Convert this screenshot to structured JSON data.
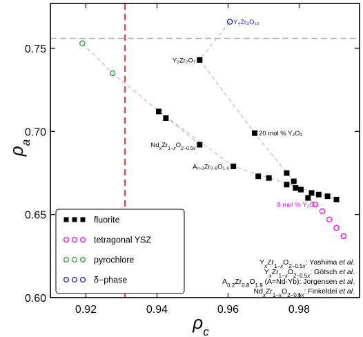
{
  "chart_data": {
    "type": "scatter",
    "xlabel": "ρ",
    "xlabel_sub": "c",
    "ylabel": "ρ",
    "ylabel_sub": "a",
    "xlim": [
      0.91,
      0.997
    ],
    "ylim": [
      0.6,
      0.777
    ],
    "xticks": [
      0.92,
      0.94,
      0.96,
      0.98
    ],
    "xtick_labels": [
      "0.92",
      "0.94",
      "0.96",
      "0.98"
    ],
    "yticks": [
      0.6,
      0.65,
      0.7,
      0.75
    ],
    "ytick_labels": [
      "0.60",
      "0.65",
      "0.70",
      "0.75"
    ],
    "grid": false,
    "legend_position": "bottom-left",
    "reference_lines": {
      "vertical_x": 0.931,
      "vertical_color": "#e8302a",
      "horizontal_y": 0.756,
      "horizontal_color": "#9aa4c8"
    },
    "series": [
      {
        "name": "fluorite",
        "marker": "square-filled",
        "color": "#000000",
        "points": [
          [
            0.952,
            0.743
          ],
          [
            0.9405,
            0.712
          ],
          [
            0.9425,
            0.708
          ],
          [
            0.952,
            0.692
          ],
          [
            0.9675,
            0.699
          ],
          [
            0.9615,
            0.679
          ],
          [
            0.9685,
            0.673
          ],
          [
            0.9715,
            0.672
          ],
          [
            0.9765,
            0.675
          ],
          [
            0.9765,
            0.668
          ],
          [
            0.9785,
            0.67
          ],
          [
            0.979,
            0.666
          ],
          [
            0.9805,
            0.665
          ],
          [
            0.9825,
            0.66
          ],
          [
            0.9835,
            0.663
          ],
          [
            0.9855,
            0.662
          ],
          [
            0.988,
            0.661
          ],
          [
            0.9905,
            0.659
          ]
        ]
      },
      {
        "name": "tetragonal YSZ",
        "marker": "circle-open",
        "color": "#ff00ff",
        "points": [
          [
            0.9845,
            0.656
          ],
          [
            0.9865,
            0.652
          ],
          [
            0.9885,
            0.647
          ],
          [
            0.9905,
            0.642
          ],
          [
            0.9925,
            0.637
          ]
        ]
      },
      {
        "name": "pyrochlore",
        "marker": "circle-open",
        "color": "#2e9a2e",
        "points": [
          [
            0.919,
            0.753
          ],
          [
            0.9275,
            0.735
          ]
        ]
      },
      {
        "name": "δ−phase",
        "marker": "circle-open",
        "color": "#1a1adf",
        "points": [
          [
            0.9605,
            0.766
          ]
        ]
      }
    ],
    "trend_lines": [
      [
        [
          0.919,
          0.753
        ],
        [
          0.9275,
          0.735
        ],
        [
          0.952,
          0.692
        ]
      ],
      [
        [
          0.9605,
          0.766
        ],
        [
          0.952,
          0.743
        ],
        [
          0.9675,
          0.699
        ],
        [
          0.9765,
          0.675
        ],
        [
          0.9805,
          0.665
        ],
        [
          0.9845,
          0.656
        ]
      ],
      [
        [
          0.9405,
          0.712
        ],
        [
          0.9615,
          0.679
        ],
        [
          0.9905,
          0.659
        ]
      ]
    ],
    "annotations": [
      {
        "text": "Y₄Zr₃O₁₂",
        "x": 0.9605,
        "y": 0.766,
        "anchor": "start",
        "dx": 5,
        "color": "#1a1adf"
      },
      {
        "text": "Y₂Zr₂O₇",
        "x": 0.952,
        "y": 0.743,
        "anchor": "end",
        "dx": -6,
        "color": "#000000"
      },
      {
        "text": "20 mol % Y₂O₃",
        "x": 0.9675,
        "y": 0.699,
        "anchor": "start",
        "dx": 6,
        "color": "#000000"
      },
      {
        "text": "Nd",
        "x": 0.952,
        "y": 0.692,
        "anchor": "end",
        "dx": -6,
        "color": "#000000",
        "rich": "ndzr"
      },
      {
        "text": "A₀.₂Zr₀.₈O₁.₉",
        "x": 0.9615,
        "y": 0.679,
        "anchor": "end",
        "dx": -6,
        "color": "#000000"
      },
      {
        "text": "8 mol % Y₂O₃",
        "x": 0.9845,
        "y": 0.656,
        "anchor": "end",
        "dx": 3,
        "color": "#ff00ff"
      }
    ],
    "references": [
      {
        "formula_prefix": "Y",
        "formula_body": "Zr",
        "formula_tail": "O",
        "authors": "Yashima",
        "etal": "et al."
      },
      {
        "formula_prefix": "Y",
        "formula_body": "Zr",
        "formula_tail": "O",
        "authors": "Götsch",
        "etal": "et al."
      },
      {
        "formula_prefix": "A",
        "formula_body": "Zr",
        "formula_tail": "O",
        "authors": "Jorgensen",
        "etal": "et al."
      },
      {
        "formula_prefix": "Nd",
        "formula_body": "Zr",
        "formula_tail": "O",
        "authors": "Finkeldei",
        "etal": "et al."
      }
    ]
  }
}
